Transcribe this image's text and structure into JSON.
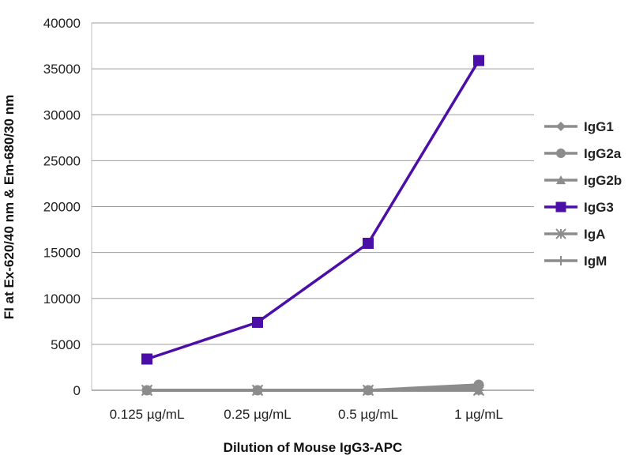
{
  "chart_data": {
    "type": "line",
    "title": "",
    "xlabel": "Dilution of Mouse IgG3-APC",
    "ylabel": "FI at Ex-620/40 nm & Em-680/30 nm",
    "categories": [
      "0.125 µg/mL",
      "0.25 µg/mL",
      "0.5 µg/mL",
      "1 µg/mL"
    ],
    "ylim": [
      0,
      40000
    ],
    "yticks": [
      0,
      5000,
      10000,
      15000,
      20000,
      25000,
      30000,
      35000,
      40000
    ],
    "grid": true,
    "legend_position": "right",
    "series": [
      {
        "name": "IgG1",
        "values": [
          0,
          0,
          0,
          300
        ],
        "color": "#8c8c8c",
        "marker": "diamond"
      },
      {
        "name": "IgG2a",
        "values": [
          0,
          0,
          0,
          600
        ],
        "color": "#8c8c8c",
        "marker": "circle"
      },
      {
        "name": "IgG2b",
        "values": [
          0,
          0,
          0,
          0
        ],
        "color": "#8c8c8c",
        "marker": "triangle"
      },
      {
        "name": "IgG3",
        "values": [
          3400,
          7400,
          16000,
          35900
        ],
        "color": "#4b0fa8",
        "marker": "square"
      },
      {
        "name": "IgA",
        "values": [
          0,
          0,
          0,
          0
        ],
        "color": "#8c8c8c",
        "marker": "star"
      },
      {
        "name": "IgM",
        "values": [
          0,
          0,
          0,
          0
        ],
        "color": "#8c8c8c",
        "marker": "plus"
      }
    ]
  }
}
